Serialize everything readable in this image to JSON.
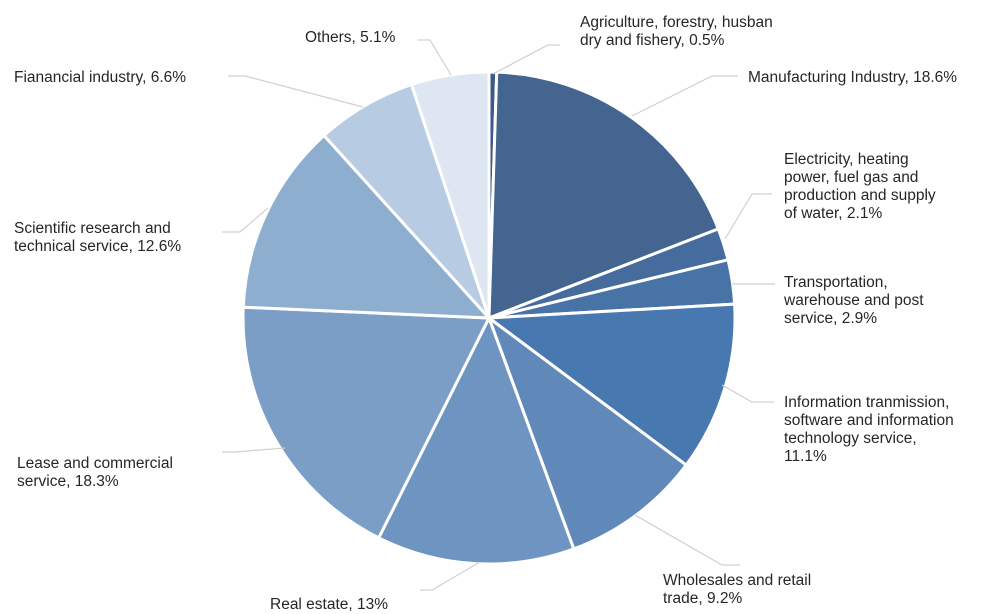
{
  "chart_data": {
    "type": "pie",
    "title": "",
    "unit": "%",
    "slices": [
      {
        "label": "Agriculture, forestry, husban dry and fishery, 0.5%",
        "value": 0.5,
        "color": "#3b5a87"
      },
      {
        "label": "Manufacturing Industry, 18.6%",
        "value": 18.6,
        "color": "#43658f"
      },
      {
        "label": "Electricity, heating power, fuel gas and production and supply of water, 2.1%",
        "value": 2.1,
        "color": "#456c9c"
      },
      {
        "label": "Transportation, warehouse and post service, 2.9%",
        "value": 2.9,
        "color": "#4873a6"
      },
      {
        "label": "Information tranmission, software and information technology service, 11.1%",
        "value": 11.1,
        "color": "#4878b0"
      },
      {
        "label": "Wholesales and retail trade, 9.2%",
        "value": 9.2,
        "color": "#6089b9"
      },
      {
        "label": "Real estate, 13%",
        "value": 13.0,
        "color": "#6e94c1"
      },
      {
        "label": "Lease and commercial service, 18.3%",
        "value": 18.3,
        "color": "#7b9ec6"
      },
      {
        "label": "Scientific research and technical service, 12.6%",
        "value": 12.6,
        "color": "#8eaed0"
      },
      {
        "label": "Fianancial industry, 6.6%",
        "value": 6.6,
        "color": "#b7cbe2"
      },
      {
        "label": "Others, 5.1%",
        "value": 5.1,
        "color": "#dde6f1"
      }
    ]
  }
}
